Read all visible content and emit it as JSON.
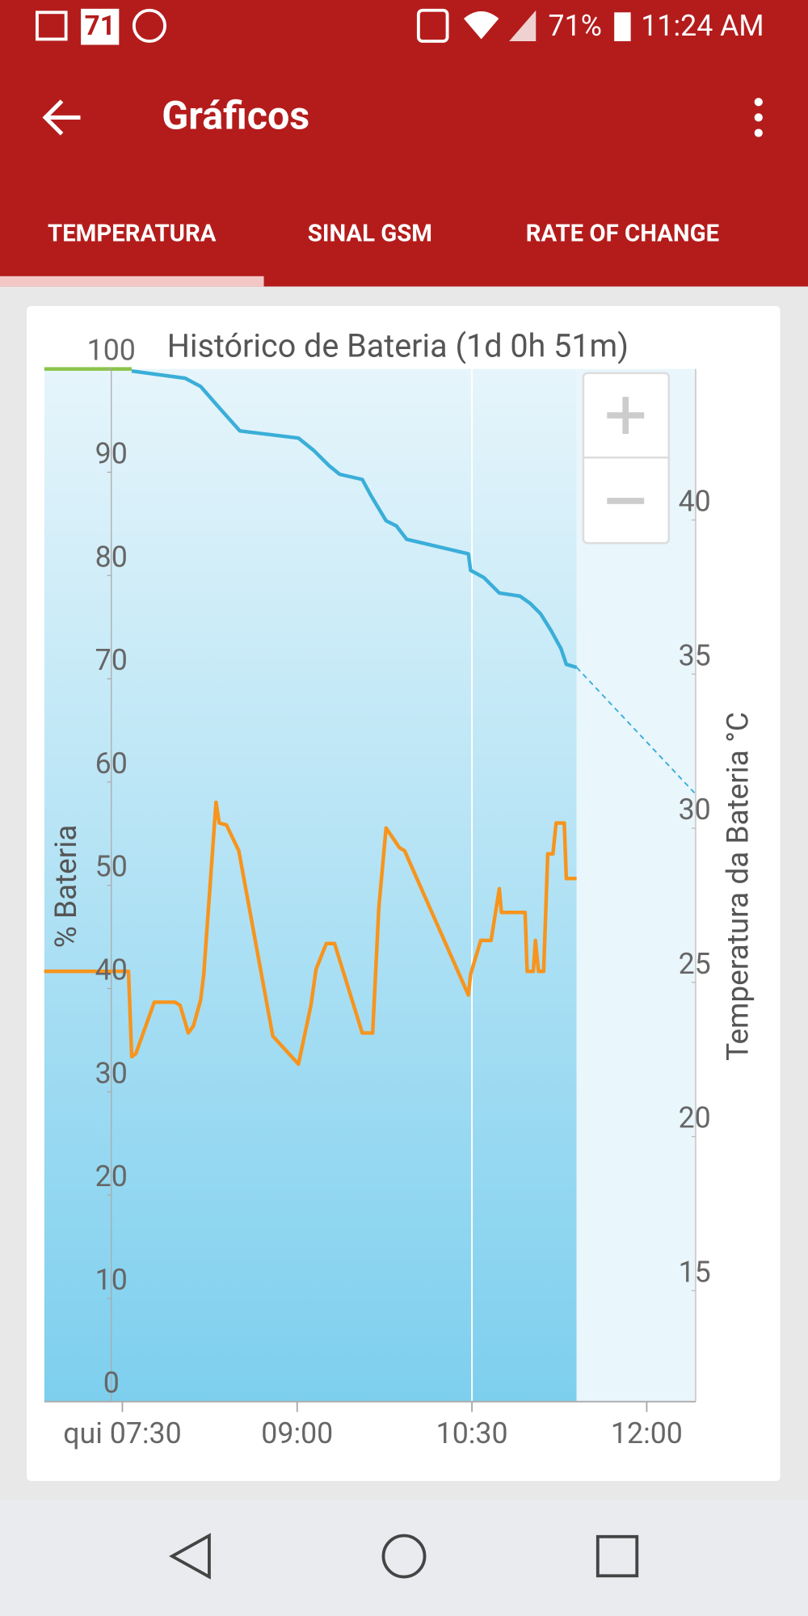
{
  "status_bar": {
    "notification_count": "71",
    "battery": "71%",
    "time": "11:24 AM"
  },
  "app_bar": {
    "title": "Gráficos"
  },
  "tabs": [
    "TEMPERATURA",
    "SINAL GSM",
    "RATE OF CHANGE"
  ],
  "chart_data": {
    "type": "line",
    "title": "Histórico de Bateria (1d 0h 51m)",
    "ylabel": "% Bateria",
    "y2label": "Temperatura da Bateria °C",
    "xlim": [
      6.83,
      12.42
    ],
    "xticks": [
      {
        "value": 7.5,
        "label": "qui 07:30"
      },
      {
        "value": 9,
        "label": "09:00"
      },
      {
        "value": 10.5,
        "label": "10:30"
      },
      {
        "value": 12,
        "label": "12:00"
      }
    ],
    "ylim": [
      0,
      100
    ],
    "yticks": [
      0,
      10,
      20,
      30,
      40,
      50,
      60,
      70,
      80,
      90,
      100
    ],
    "y2lim": [
      11.4,
      44.9
    ],
    "y2ticks": [
      15,
      20,
      25,
      30,
      35,
      40
    ],
    "grid": false,
    "series": [
      {
        "color": "#8bc34a",
        "x": [
          6.83,
          7.58
        ],
        "values": [
          100,
          100
        ]
      },
      {
        "color": "#3aaed8",
        "x": [
          7.58,
          8.039,
          8.172,
          8.304,
          8.508,
          9.011,
          9.144,
          9.277,
          9.365,
          9.559,
          9.63,
          9.763,
          9.851,
          9.94,
          10.47,
          10.488,
          10.602,
          10.735,
          10.912,
          11.0,
          11.089,
          11.177,
          11.265,
          11.31,
          11.398
        ],
        "values": [
          99.8,
          99.1,
          98.3,
          96.6,
          94.0,
          93.3,
          92.1,
          90.6,
          89.8,
          89.3,
          87.8,
          85.3,
          84.8,
          83.5,
          82.1,
          80.5,
          79.8,
          78.3,
          78.0,
          77.3,
          76.3,
          74.7,
          72.9,
          71.4,
          71.1
        ]
      },
      {
        "color": "#3aaed8",
        "dashed": true,
        "x": [
          11.398,
          12.414
        ],
        "values": [
          71.1,
          58.9
        ]
      },
      {
        "color": "#f7941d",
        "axis": "y2",
        "x": [
          6.828,
          7.553,
          7.58,
          7.615,
          7.774,
          7.951,
          7.995,
          8.066,
          8.11,
          8.172,
          8.198,
          8.304,
          8.331,
          8.393,
          8.499,
          8.791,
          9.011,
          9.118,
          9.162,
          9.25,
          9.321,
          9.559,
          9.648,
          9.701,
          9.763,
          9.878,
          9.922,
          10.47,
          10.488,
          10.576,
          10.664,
          10.735,
          10.753,
          10.956,
          10.974,
          11.027,
          11.045,
          11.071,
          11.115,
          11.151,
          11.195,
          11.222,
          11.292,
          11.31,
          11.398
        ],
        "values": [
          25.36,
          25.36,
          22.59,
          22.69,
          24.36,
          24.36,
          24.26,
          23.36,
          23.59,
          24.43,
          25.26,
          30.84,
          30.17,
          30.11,
          29.27,
          23.26,
          22.35,
          24.26,
          25.43,
          26.26,
          26.26,
          23.36,
          23.36,
          27.43,
          30.01,
          29.37,
          29.27,
          24.59,
          25.26,
          26.36,
          26.36,
          28.04,
          27.27,
          27.27,
          25.36,
          25.36,
          26.36,
          25.36,
          25.36,
          29.17,
          29.17,
          30.17,
          30.17,
          28.37,
          28.37
        ]
      }
    ]
  }
}
